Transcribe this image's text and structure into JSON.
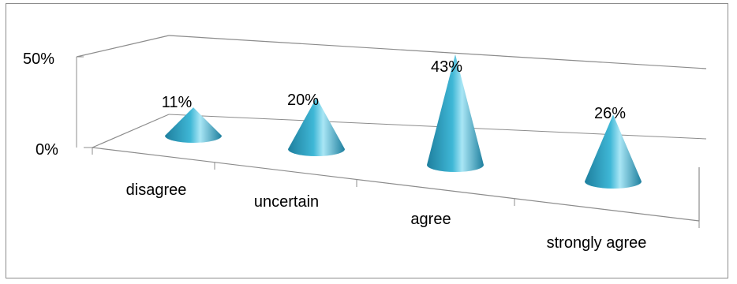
{
  "chart_data": {
    "type": "bar",
    "bar_shape": "cone",
    "three_d": true,
    "categories": [
      "disagree",
      "uncertain",
      "agree",
      "strongly agree"
    ],
    "values": [
      11,
      20,
      43,
      26
    ],
    "data_labels": [
      "11%",
      "20%",
      "43%",
      "26%"
    ],
    "y_ticks": [
      "0%",
      "50%"
    ],
    "ylim": [
      0,
      50
    ],
    "ylabel": "",
    "xlabel": "",
    "legend": "none",
    "grid": false,
    "colors": {
      "cone_dark": "#1e7f9e",
      "cone_mid": "#3fb7d6",
      "cone_light": "#a9e6f5",
      "axis": "#8c8c8c"
    }
  }
}
